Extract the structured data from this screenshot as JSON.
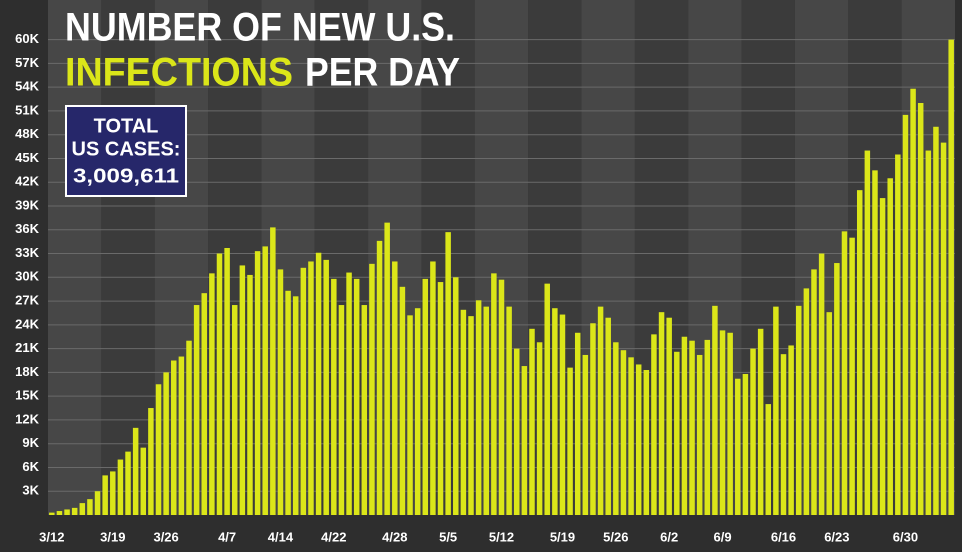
{
  "chart_data": {
    "type": "bar",
    "title_line1": "NUMBER OF NEW U.S.",
    "title_highlight": "INFECTIONS",
    "title_rest": "PER DAY",
    "total_label_line1": "TOTAL",
    "total_label_line2": "US CASES:",
    "total_value": "3,009,611",
    "color": "#dbe619",
    "highlight_color": "#dbe619",
    "grid": true,
    "categories": [
      "3/12",
      null,
      null,
      null,
      null,
      null,
      null,
      null,
      "3/19",
      null,
      null,
      null,
      null,
      null,
      null,
      "3/26",
      null,
      null,
      null,
      null,
      null,
      null,
      null,
      "4/7",
      null,
      null,
      null,
      null,
      null,
      null,
      "4/14",
      null,
      null,
      null,
      null,
      null,
      null,
      "4/22",
      null,
      null,
      null,
      null,
      null,
      null,
      null,
      "4/28",
      null,
      null,
      null,
      null,
      null,
      null,
      "5/5",
      null,
      null,
      null,
      null,
      null,
      null,
      "5/12",
      null,
      null,
      null,
      null,
      null,
      null,
      null,
      "5/19",
      null,
      null,
      null,
      null,
      null,
      null,
      "5/26",
      null,
      null,
      null,
      null,
      null,
      null,
      "6/2",
      null,
      null,
      null,
      null,
      null,
      null,
      "6/9",
      null,
      null,
      null,
      null,
      null,
      null,
      null,
      "6/16",
      null,
      null,
      null,
      null,
      null,
      null,
      "6/23",
      null,
      null,
      null,
      null,
      null,
      null,
      null,
      null,
      "6/30",
      null,
      null,
      null,
      null,
      null,
      null
    ],
    "values": [
      300,
      500,
      700,
      900,
      1500,
      2000,
      3000,
      5000,
      5500,
      7000,
      8000,
      11000,
      8500,
      13500,
      16500,
      18000,
      19500,
      20000,
      22000,
      26500,
      28000,
      30500,
      33000,
      33700,
      26500,
      31500,
      30300,
      33300,
      33900,
      36300,
      31000,
      28300,
      27600,
      31200,
      32000,
      33100,
      32200,
      29800,
      26500,
      30600,
      29800,
      26500,
      31700,
      34600,
      36900,
      32000,
      28800,
      25200,
      26100,
      29800,
      32000,
      29400,
      35700,
      30000,
      25900,
      25100,
      27100,
      26300,
      30500,
      29700,
      26300,
      21000,
      18800,
      23500,
      21800,
      29200,
      26100,
      25300,
      18600,
      23000,
      20200,
      24200,
      26300,
      24900,
      21800,
      20800,
      19900,
      19000,
      18300,
      22800,
      25600,
      24900,
      20600,
      22500,
      22000,
      20200,
      22100,
      26400,
      23300,
      23000,
      17200,
      17800,
      21000,
      23500,
      14000,
      26300,
      20300,
      21400,
      26400,
      28600,
      31000,
      33000,
      25600,
      31800,
      35800,
      35000,
      41000,
      46000,
      43500,
      40000,
      42500,
      45500,
      50500,
      53800,
      52000,
      46000,
      49000,
      47000,
      60000
    ],
    "ylim": [
      0,
      65000
    ],
    "yticks": [
      {
        "value": 3000,
        "label": "3K"
      },
      {
        "value": 6000,
        "label": "6K"
      },
      {
        "value": 9000,
        "label": "9K"
      },
      {
        "value": 12000,
        "label": "12K"
      },
      {
        "value": 15000,
        "label": "15K"
      },
      {
        "value": 18000,
        "label": "18K"
      },
      {
        "value": 21000,
        "label": "21K"
      },
      {
        "value": 24000,
        "label": "24K"
      },
      {
        "value": 27000,
        "label": "27K"
      },
      {
        "value": 30000,
        "label": "30K"
      },
      {
        "value": 33000,
        "label": "33K"
      },
      {
        "value": 36000,
        "label": "36K"
      },
      {
        "value": 39000,
        "label": "39K"
      },
      {
        "value": 42000,
        "label": "42K"
      },
      {
        "value": 45000,
        "label": "45K"
      },
      {
        "value": 48000,
        "label": "48K"
      },
      {
        "value": 51000,
        "label": "51K"
      },
      {
        "value": 54000,
        "label": "54K"
      },
      {
        "value": 57000,
        "label": "57K"
      },
      {
        "value": 60000,
        "label": "60K"
      }
    ]
  }
}
